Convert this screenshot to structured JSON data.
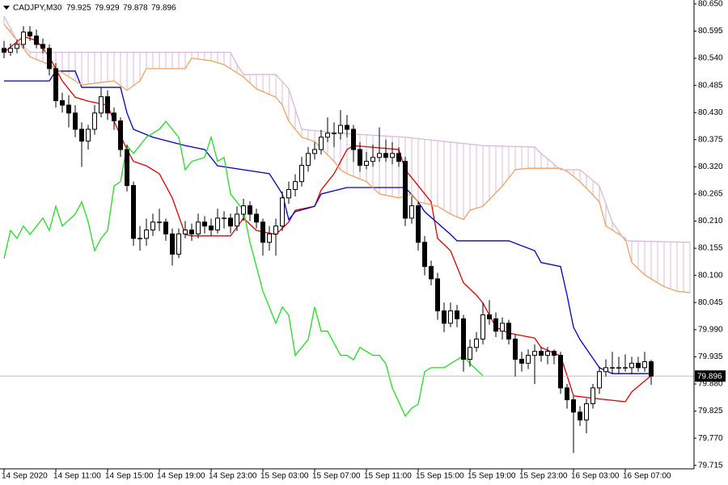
{
  "chart_data": {
    "type": "candlestick",
    "title": "CADJPY,M30",
    "up_color": "#ffffff",
    "down_color": "#000000",
    "ylim": [
      79.708,
      80.658
    ],
    "yticks": [
      {
        "value": 80.65,
        "label": "80.650"
      },
      80.595,
      {
        "value": 80.54,
        "label": "80.540"
      },
      80.485,
      {
        "value": 80.43,
        "label": "80.430"
      },
      80.375,
      {
        "value": 80.32,
        "label": "80.320"
      },
      80.265,
      {
        "value": 80.21,
        "label": "80.210"
      },
      80.155,
      {
        "value": 80.1,
        "label": "80.100"
      },
      80.045,
      {
        "value": 79.99,
        "label": "79.990"
      },
      79.935,
      {
        "value": 79.88,
        "label": "79.880"
      },
      79.825,
      {
        "value": 79.77,
        "label": "79.770"
      },
      79.715
    ],
    "categories": [
      "14 Sep 2020",
      null,
      null,
      null,
      null,
      null,
      null,
      null,
      "14 Sep 11:00",
      null,
      null,
      null,
      null,
      null,
      null,
      null,
      "14 Sep 15:00",
      null,
      null,
      null,
      null,
      null,
      null,
      null,
      "14 Sep 19:00",
      null,
      null,
      null,
      null,
      null,
      null,
      null,
      "14 Sep 23:00",
      null,
      null,
      null,
      null,
      null,
      null,
      null,
      "15 Sep 03:00",
      null,
      null,
      null,
      null,
      null,
      null,
      null,
      "15 Sep 07:00",
      null,
      null,
      null,
      null,
      null,
      null,
      null,
      "15 Sep 11:00",
      null,
      null,
      null,
      null,
      null,
      null,
      null,
      "15 Sep 15:00",
      null,
      null,
      null,
      null,
      null,
      null,
      null,
      "15 Sep 19:00",
      null,
      null,
      null,
      null,
      null,
      null,
      null,
      "15 Sep 23:00",
      null,
      null,
      null,
      null,
      null,
      null,
      null,
      "16 Sep 03:00",
      null,
      null,
      null,
      null,
      null,
      null,
      null,
      "16 Sep 07:00",
      null,
      null,
      null,
      null,
      null,
      null,
      null,
      null,
      null,
      null
    ],
    "ohlc": [
      [
        80.56,
        80.575,
        80.54,
        80.552
      ],
      [
        80.552,
        80.57,
        80.545,
        80.56
      ],
      [
        80.56,
        80.578,
        80.55,
        80.568
      ],
      [
        80.568,
        80.605,
        80.56,
        80.593
      ],
      [
        80.593,
        80.605,
        80.575,
        80.585
      ],
      [
        80.585,
        80.598,
        80.56,
        80.568
      ],
      [
        80.568,
        80.58,
        80.55,
        80.56
      ],
      [
        80.56,
        80.568,
        80.505,
        80.519
      ],
      [
        80.519,
        80.53,
        80.44,
        80.454
      ],
      [
        80.454,
        80.47,
        80.43,
        80.445
      ],
      [
        80.445,
        80.465,
        80.4,
        80.429
      ],
      [
        80.429,
        80.445,
        80.38,
        80.396
      ],
      [
        80.396,
        80.41,
        80.32,
        80.372
      ],
      [
        80.372,
        80.405,
        80.355,
        80.396
      ],
      [
        80.396,
        80.445,
        80.385,
        80.429
      ],
      [
        80.429,
        80.48,
        80.42,
        80.462
      ],
      [
        80.462,
        80.475,
        80.415,
        80.429
      ],
      [
        80.429,
        80.44,
        80.395,
        80.413
      ],
      [
        80.413,
        80.42,
        80.34,
        80.355
      ],
      [
        80.355,
        80.365,
        80.27,
        80.282
      ],
      [
        80.282,
        80.29,
        80.16,
        80.175
      ],
      [
        80.175,
        80.2,
        80.15,
        80.175
      ],
      [
        80.175,
        80.215,
        80.16,
        80.192
      ],
      [
        80.192,
        80.225,
        80.18,
        80.208
      ],
      [
        80.208,
        80.235,
        80.19,
        80.208
      ],
      [
        80.208,
        80.215,
        80.17,
        80.184
      ],
      [
        80.184,
        80.195,
        80.12,
        80.143
      ],
      [
        80.143,
        80.195,
        80.135,
        80.184
      ],
      [
        80.184,
        80.21,
        80.175,
        80.192
      ],
      [
        80.192,
        80.205,
        80.17,
        80.184
      ],
      [
        80.184,
        80.225,
        80.175,
        80.208
      ],
      [
        80.208,
        80.22,
        80.185,
        80.2
      ],
      [
        80.2,
        80.215,
        80.18,
        80.192
      ],
      [
        80.192,
        80.235,
        80.185,
        80.216
      ],
      [
        80.216,
        80.23,
        80.195,
        80.216
      ],
      [
        80.216,
        80.225,
        80.185,
        80.2
      ],
      [
        80.2,
        80.24,
        80.19,
        80.224
      ],
      [
        80.224,
        80.255,
        80.21,
        80.241
      ],
      [
        80.241,
        80.25,
        80.21,
        80.224
      ],
      [
        80.224,
        80.235,
        80.195,
        80.208
      ],
      [
        80.208,
        80.215,
        80.14,
        80.167
      ],
      [
        80.167,
        80.2,
        80.15,
        80.184
      ],
      [
        80.184,
        80.215,
        80.14,
        80.2
      ],
      [
        80.2,
        80.27,
        80.19,
        80.257
      ],
      [
        80.257,
        80.29,
        80.245,
        80.274
      ],
      [
        80.274,
        80.305,
        80.26,
        80.29
      ],
      [
        80.29,
        80.34,
        80.28,
        80.323
      ],
      [
        80.323,
        80.36,
        80.31,
        80.347
      ],
      [
        80.347,
        80.37,
        80.335,
        80.355
      ],
      [
        80.355,
        80.395,
        80.345,
        80.38
      ],
      [
        80.38,
        80.42,
        80.37,
        80.388
      ],
      [
        80.388,
        80.41,
        80.36,
        80.388
      ],
      [
        80.388,
        80.435,
        80.375,
        80.404
      ],
      [
        80.404,
        80.425,
        80.38,
        80.396
      ],
      [
        80.396,
        80.405,
        80.33,
        80.355
      ],
      [
        80.355,
        80.37,
        80.31,
        80.323
      ],
      [
        80.323,
        80.35,
        80.315,
        80.331
      ],
      [
        80.331,
        80.365,
        80.32,
        80.339
      ],
      [
        80.339,
        80.4,
        80.33,
        80.347
      ],
      [
        80.347,
        80.375,
        80.33,
        80.339
      ],
      [
        80.339,
        80.37,
        80.325,
        80.347
      ],
      [
        80.347,
        80.36,
        80.32,
        80.331
      ],
      [
        80.331,
        80.34,
        80.2,
        80.216
      ],
      [
        80.216,
        80.26,
        80.205,
        80.241
      ],
      [
        80.241,
        80.25,
        80.15,
        80.167
      ],
      [
        80.167,
        80.18,
        80.1,
        80.118
      ],
      [
        80.118,
        80.13,
        80.08,
        80.093
      ],
      [
        80.093,
        80.105,
        80.01,
        80.028
      ],
      [
        80.028,
        80.045,
        79.985,
        80.003
      ],
      [
        80.003,
        80.045,
        79.995,
        80.028
      ],
      [
        80.028,
        80.04,
        79.995,
        80.012
      ],
      [
        80.012,
        80.02,
        79.905,
        79.93
      ],
      [
        79.93,
        79.97,
        79.915,
        79.954
      ],
      [
        79.954,
        79.985,
        79.945,
        79.971
      ],
      [
        79.971,
        80.045,
        79.96,
        80.02
      ],
      [
        80.02,
        80.05,
        80.0,
        80.012
      ],
      [
        80.012,
        80.025,
        79.975,
        79.987
      ],
      [
        79.987,
        80.015,
        79.97,
        80.003
      ],
      [
        80.003,
        80.01,
        79.96,
        79.971
      ],
      [
        79.971,
        79.98,
        79.895,
        79.93
      ],
      [
        79.93,
        79.945,
        79.905,
        79.922
      ],
      [
        79.922,
        79.95,
        79.91,
        79.938
      ],
      [
        79.938,
        79.96,
        79.88,
        79.946
      ],
      [
        79.946,
        79.955,
        79.925,
        79.938
      ],
      [
        79.938,
        79.955,
        79.92,
        79.946
      ],
      [
        79.946,
        79.95,
        79.92,
        79.938
      ],
      [
        79.938,
        79.945,
        79.86,
        79.872
      ],
      [
        79.872,
        79.88,
        79.83,
        79.848
      ],
      [
        79.848,
        79.855,
        79.74,
        79.823
      ],
      [
        79.823,
        79.835,
        79.795,
        79.807
      ],
      [
        79.807,
        79.85,
        79.78,
        79.84
      ],
      [
        79.84,
        79.88,
        79.83,
        79.872
      ],
      [
        79.872,
        79.915,
        79.86,
        79.905
      ],
      [
        79.905,
        79.93,
        79.895,
        79.913
      ],
      [
        79.913,
        79.945,
        79.9,
        79.913
      ],
      [
        79.913,
        79.935,
        79.9,
        79.913
      ],
      [
        79.913,
        79.94,
        79.905,
        79.913
      ],
      [
        79.913,
        79.935,
        79.9,
        79.922
      ],
      [
        79.922,
        79.935,
        79.905,
        79.913
      ],
      [
        79.913,
        79.945,
        79.905,
        79.925
      ],
      [
        79.925,
        79.929,
        79.878,
        79.896
      ],
      null,
      null,
      null,
      null,
      null,
      null
    ],
    "series": [
      {
        "color": "#e00000",
        "x": [
          0,
          3,
          5,
          7,
          9,
          11,
          13,
          16,
          17,
          19,
          20,
          22,
          24,
          26,
          28,
          29,
          35,
          37,
          39,
          42,
          44,
          45,
          48,
          49,
          51,
          53,
          54,
          61,
          62,
          63,
          66,
          67,
          69,
          71,
          73,
          74,
          76,
          78,
          82,
          83,
          86,
          87,
          88,
          91,
          96,
          97,
          98,
          100
        ],
        "values": [
          80.552,
          80.584,
          80.576,
          80.543,
          80.494,
          80.461,
          80.453,
          80.445,
          80.412,
          80.355,
          80.331,
          80.322,
          80.306,
          80.257,
          80.183,
          80.18,
          80.18,
          80.216,
          80.191,
          80.183,
          80.208,
          80.232,
          80.24,
          80.273,
          80.306,
          80.355,
          80.363,
          80.355,
          80.314,
          80.298,
          80.249,
          80.175,
          80.15,
          80.085,
          80.06,
          80.044,
          79.995,
          79.983,
          79.973,
          79.954,
          79.937,
          79.897,
          79.856,
          79.851,
          79.844,
          79.864,
          79.875,
          79.897
        ]
      },
      {
        "color": "#0000c8",
        "x": [
          0,
          7,
          8,
          11,
          12,
          18,
          19,
          20,
          23,
          28,
          31,
          33,
          37,
          41,
          43,
          44,
          45,
          48,
          49,
          53,
          62,
          64,
          65,
          69,
          70,
          78,
          82,
          83,
          86,
          87,
          88,
          89,
          92,
          94,
          100
        ],
        "values": [
          80.494,
          80.494,
          80.514,
          80.514,
          80.481,
          80.481,
          80.429,
          80.396,
          80.38,
          80.363,
          80.355,
          80.322,
          80.314,
          80.306,
          80.265,
          80.213,
          80.229,
          80.24,
          80.265,
          80.278,
          80.278,
          80.249,
          80.229,
          80.183,
          80.17,
          80.17,
          80.15,
          80.126,
          80.118,
          80.06,
          79.995,
          79.97,
          79.913,
          79.901,
          79.901
        ]
      },
      {
        "color": "#22dd22",
        "x": [
          0,
          1,
          2,
          3,
          4,
          6,
          7,
          8,
          9,
          11,
          12,
          13,
          14,
          15,
          16,
          17,
          18,
          19,
          20,
          22,
          23,
          24,
          25,
          27,
          28,
          29,
          31,
          32,
          33,
          34,
          35,
          37,
          38,
          39,
          40,
          42,
          43,
          44,
          45,
          47,
          48,
          49,
          50,
          52,
          53,
          54,
          55,
          57,
          58,
          59,
          60,
          62,
          63,
          64,
          65,
          66,
          68,
          70,
          71,
          72,
          74
        ],
        "values": [
          80.134,
          80.191,
          80.175,
          80.2,
          80.183,
          80.216,
          80.191,
          80.24,
          80.2,
          80.224,
          80.249,
          80.208,
          80.15,
          80.175,
          80.191,
          80.281,
          80.29,
          80.363,
          80.347,
          80.38,
          80.388,
          80.396,
          80.412,
          80.38,
          80.314,
          80.331,
          80.339,
          80.38,
          80.331,
          80.339,
          80.265,
          80.232,
          80.167,
          80.118,
          80.068,
          80.003,
          80.036,
          80.019,
          79.938,
          79.97,
          80.036,
          79.987,
          79.987,
          79.938,
          79.938,
          79.929,
          79.954,
          79.938,
          79.938,
          79.921,
          79.872,
          79.815,
          79.831,
          79.839,
          79.905,
          79.913,
          79.913,
          79.929,
          79.938,
          79.921,
          79.897
        ]
      },
      {
        "color": "#f0a060",
        "x": [
          0,
          2,
          4,
          7,
          12,
          17,
          19,
          21,
          22,
          28,
          29,
          32,
          34,
          37,
          39,
          42,
          43,
          44,
          46,
          48,
          51,
          52,
          53,
          56,
          58,
          61,
          63,
          64,
          67,
          69,
          71,
          72,
          74,
          77,
          79,
          81,
          86,
          87,
          89,
          92,
          93,
          96,
          97,
          99,
          102,
          104,
          106
        ],
        "values": [
          80.609,
          80.576,
          80.543,
          80.527,
          80.486,
          80.494,
          80.475,
          80.494,
          80.519,
          80.519,
          80.54,
          80.535,
          80.527,
          80.502,
          80.478,
          80.461,
          80.445,
          80.412,
          80.38,
          80.371,
          80.331,
          80.314,
          80.306,
          80.29,
          80.265,
          80.257,
          80.265,
          80.249,
          80.24,
          80.224,
          80.213,
          80.232,
          80.24,
          80.281,
          80.314,
          80.317,
          80.317,
          80.311,
          80.29,
          80.249,
          80.2,
          80.175,
          80.126,
          80.101,
          80.077,
          80.068,
          80.065
        ]
      },
      {
        "color": "#d8b8d8",
        "x": [
          0,
          2,
          4,
          7,
          35,
          36,
          37,
          42,
          44,
          45,
          46,
          52,
          62,
          74,
          82,
          83,
          86,
          89,
          92,
          94,
          96,
          106
        ],
        "values": [
          80.625,
          80.576,
          80.552,
          80.552,
          80.552,
          80.527,
          80.507,
          80.507,
          80.478,
          80.437,
          80.396,
          80.388,
          80.38,
          80.363,
          80.36,
          80.347,
          80.314,
          80.314,
          80.281,
          80.208,
          80.17,
          80.167
        ]
      }
    ]
  }
}
